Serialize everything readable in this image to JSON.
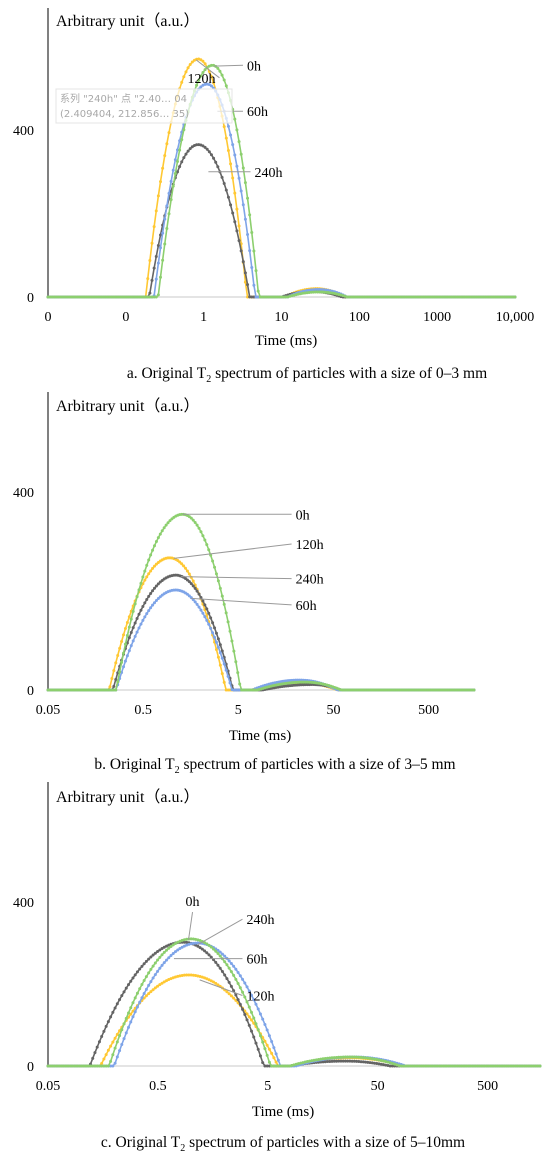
{
  "colors": {
    "0h": "#8ccf6e",
    "60h": "#7ea4e8",
    "120h": "#ffc833",
    "240h": "#646464",
    "axis": "#000000",
    "leader": "#9a9a9a"
  },
  "tooltip": {
    "line1": "系列 \"240h\" 点 \"2.40… 04",
    "line2": "(2.409404, 212.856… 35)"
  },
  "chart_data": [
    {
      "id": "a",
      "type": "line",
      "ylabel": "Arbitrary unit（a.u.）",
      "xlabel": "Time (ms)",
      "caption_pre": "a. Original T",
      "caption_sub": "2",
      "caption_post": " spectrum of particles with a size of 0–3 mm",
      "x_scale": "log",
      "xlim": [
        0.01,
        10000
      ],
      "xticks": [
        {
          "pos": 0.01,
          "label": "0"
        },
        {
          "pos": 0.1,
          "label": "0"
        },
        {
          "pos": 1,
          "label": "1"
        },
        {
          "pos": 10,
          "label": "10"
        },
        {
          "pos": 100,
          "label": "100"
        },
        {
          "pos": 1000,
          "label": "1000"
        },
        {
          "pos": 10000,
          "label": "10,000"
        }
      ],
      "ylim": [
        0,
        700
      ],
      "yticks": [
        {
          "pos": 0,
          "label": "0"
        },
        {
          "pos": 400,
          "label": "400"
        }
      ],
      "series": [
        {
          "name": "0h",
          "peak1": {
            "x": 1.3,
            "y": 555,
            "lo": 0.26,
            "hi": 5.1
          },
          "peak2": {
            "x": 30,
            "y": 12,
            "lo": 12,
            "hi": 70
          }
        },
        {
          "name": "60h",
          "peak1": {
            "x": 1.1,
            "y": 510,
            "lo": 0.23,
            "hi": 4.6
          },
          "peak2": {
            "x": 30,
            "y": 18,
            "lo": 12,
            "hi": 70
          }
        },
        {
          "name": "120h",
          "peak1": {
            "x": 0.85,
            "y": 570,
            "lo": 0.18,
            "hi": 3.6
          },
          "peak2": {
            "x": 28,
            "y": 20,
            "lo": 11,
            "hi": 65
          }
        },
        {
          "name": "240h",
          "peak1": {
            "x": 0.85,
            "y": 365,
            "lo": 0.2,
            "hi": 3.9
          },
          "peak2": {
            "x": 25,
            "y": 13,
            "lo": 10,
            "hi": 60
          }
        }
      ],
      "labels": [
        {
          "series": "120h",
          "text": "120h",
          "at": {
            "x": 0.55,
            "y": 525
          },
          "point": {
            "x": 0.8,
            "y": 568
          }
        },
        {
          "series": "0h",
          "text": "0h",
          "at": {
            "x": 3.6,
            "y": 555
          },
          "point": {
            "x": 1.35,
            "y": 553
          }
        },
        {
          "series": "60h",
          "text": "60h",
          "at": {
            "x": 3.6,
            "y": 445
          },
          "point": {
            "x": 1.5,
            "y": 445
          }
        },
        {
          "series": "240h",
          "text": "240h",
          "at": {
            "x": 4.5,
            "y": 300
          },
          "point": {
            "x": 1.15,
            "y": 300
          }
        }
      ]
    },
    {
      "id": "b",
      "type": "line",
      "ylabel": "Arbitrary unit（a.u.）",
      "xlabel": "Time (ms)",
      "caption_pre": "b. Original T",
      "caption_sub": "2",
      "caption_post": " spectrum of particles with a size of 3–5 mm",
      "x_scale": "log",
      "xlim": [
        0.05,
        1500
      ],
      "xticks": [
        {
          "pos": 0.05,
          "label": "0.05"
        },
        {
          "pos": 0.5,
          "label": "0.5"
        },
        {
          "pos": 5,
          "label": "5"
        },
        {
          "pos": 50,
          "label": "50"
        },
        {
          "pos": 500,
          "label": "500"
        }
      ],
      "ylim": [
        0,
        700
      ],
      "yticks": [
        {
          "pos": 0,
          "label": "0"
        },
        {
          "pos": 400,
          "label": "400"
        }
      ],
      "series": [
        {
          "name": "0h",
          "peak1": {
            "x": 1.3,
            "y": 355,
            "lo": 0.26,
            "hi": 5.3
          },
          "peak2": {
            "x": 25,
            "y": 16,
            "lo": 8,
            "hi": 60
          }
        },
        {
          "name": "60h",
          "peak1": {
            "x": 1.1,
            "y": 202,
            "lo": 0.26,
            "hi": 4.3
          },
          "peak2": {
            "x": 22,
            "y": 20,
            "lo": 7,
            "hi": 55
          }
        },
        {
          "name": "120h",
          "peak1": {
            "x": 0.95,
            "y": 267,
            "lo": 0.22,
            "hi": 3.7
          },
          "peak2": {
            "x": 22,
            "y": 15,
            "lo": 7,
            "hi": 55
          }
        },
        {
          "name": "240h",
          "peak1": {
            "x": 1.1,
            "y": 232,
            "lo": 0.24,
            "hi": 4.4
          },
          "peak2": {
            "x": 30,
            "y": 11,
            "lo": 9,
            "hi": 60
          }
        }
      ],
      "labels": [
        {
          "series": "0h",
          "text": "0h",
          "at": {
            "x": 20,
            "y": 355
          },
          "point": {
            "x": 1.3,
            "y": 355
          }
        },
        {
          "series": "120h",
          "text": "120h",
          "at": {
            "x": 20,
            "y": 295
          },
          "point": {
            "x": 1.05,
            "y": 266
          }
        },
        {
          "series": "240h",
          "text": "240h",
          "at": {
            "x": 20,
            "y": 225
          },
          "point": {
            "x": 1.25,
            "y": 229
          }
        },
        {
          "series": "60h",
          "text": "60h",
          "at": {
            "x": 20,
            "y": 172
          },
          "point": {
            "x": 1.6,
            "y": 185
          }
        }
      ]
    },
    {
      "id": "c",
      "type": "line",
      "ylabel": "Arbitrary unit（a.u.）",
      "xlabel": "Time (ms)",
      "caption_pre": "c. Original T",
      "caption_sub": "2",
      "caption_post": " spectrum of particles with a size of 5–10mm",
      "x_scale": "log",
      "xlim": [
        0.05,
        1500
      ],
      "xticks": [
        {
          "pos": 0.05,
          "label": "0.05"
        },
        {
          "pos": 0.5,
          "label": "0.5"
        },
        {
          "pos": 5,
          "label": "5"
        },
        {
          "pos": 50,
          "label": "50"
        },
        {
          "pos": 500,
          "label": "500"
        }
      ],
      "ylim": [
        0,
        700
      ],
      "yticks": [
        {
          "pos": 0,
          "label": "0"
        },
        {
          "pos": 400,
          "label": "400"
        }
      ],
      "series": [
        {
          "name": "0h",
          "peak1": {
            "x": 1.0,
            "y": 310,
            "lo": 0.18,
            "hi": 5.3
          },
          "peak2": {
            "x": 28,
            "y": 22,
            "lo": 8,
            "hi": 80
          }
        },
        {
          "name": "60h",
          "peak1": {
            "x": 1.15,
            "y": 300,
            "lo": 0.2,
            "hi": 6.5
          },
          "peak2": {
            "x": 30,
            "y": 22,
            "lo": 9,
            "hi": 90
          }
        },
        {
          "name": "120h",
          "peak1": {
            "x": 0.95,
            "y": 222,
            "lo": 0.15,
            "hi": 6.2
          },
          "peak2": {
            "x": 28,
            "y": 20,
            "lo": 8,
            "hi": 85
          }
        },
        {
          "name": "240h",
          "peak1": {
            "x": 0.85,
            "y": 302,
            "lo": 0.12,
            "hi": 4.6
          },
          "peak2": {
            "x": 25,
            "y": 12,
            "lo": 8,
            "hi": 65
          }
        }
      ],
      "labels": [
        {
          "series": "0h",
          "text": "0h",
          "at": {
            "x": 0.95,
            "y": 390
          },
          "point": {
            "x": 0.95,
            "y": 308
          }
        },
        {
          "series": "240h",
          "text": "240h",
          "at": {
            "x": 3.2,
            "y": 358
          },
          "point": {
            "x": 1.15,
            "y": 296
          }
        },
        {
          "series": "60h",
          "text": "60h",
          "at": {
            "x": 3.2,
            "y": 262
          },
          "point": {
            "x": 0.7,
            "y": 262
          }
        },
        {
          "series": "120h",
          "text": "120h",
          "at": {
            "x": 3.2,
            "y": 172
          },
          "point": {
            "x": 1.2,
            "y": 210
          }
        }
      ]
    }
  ]
}
